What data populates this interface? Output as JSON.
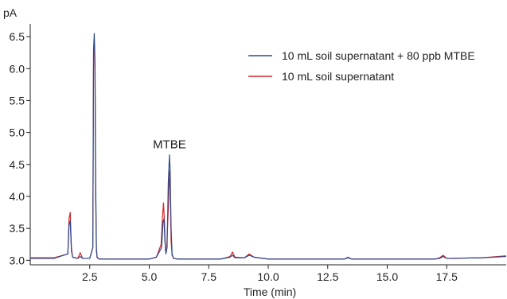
{
  "chart_data": {
    "type": "line",
    "title": "",
    "xlabel": "Time (min)",
    "ylabel": "pA",
    "xlim": [
      0,
      20
    ],
    "ylim": [
      2.93,
      6.7
    ],
    "x_ticks": [
      2.5,
      5.0,
      7.5,
      10.0,
      12.5,
      15.0,
      17.5
    ],
    "x_tick_labels": [
      "2.5",
      "5.0",
      "7.5",
      "10.0",
      "12.5",
      "15.0",
      "17.5"
    ],
    "y_ticks": [
      3.0,
      3.5,
      4.0,
      4.5,
      5.0,
      5.5,
      6.0,
      6.5
    ],
    "y_tick_labels": [
      "3.0",
      "3.5",
      "4.0",
      "4.5",
      "5.0",
      "5.5",
      "6.0",
      "6.5"
    ],
    "grid": false,
    "legend_position": "top-right",
    "annotations": [
      {
        "text": "MTBE",
        "x": 5.85,
        "y": 4.75
      }
    ],
    "series": [
      {
        "name": "10 mL soil supernatant + 80 ppb MTBE",
        "color": "#2b4a8f",
        "x": [
          0.0,
          1.0,
          1.58,
          1.63,
          1.68,
          1.73,
          1.78,
          2.0,
          2.1,
          2.2,
          2.5,
          2.63,
          2.66,
          2.69,
          2.72,
          2.75,
          2.78,
          2.81,
          2.9,
          3.5,
          4.0,
          4.5,
          5.0,
          5.3,
          5.52,
          5.58,
          5.62,
          5.66,
          5.7,
          5.75,
          5.8,
          5.85,
          5.88,
          5.92,
          5.96,
          6.02,
          6.2,
          7.0,
          8.0,
          8.4,
          8.5,
          8.6,
          9.0,
          9.2,
          9.4,
          10.0,
          11.0,
          12.0,
          13.2,
          13.35,
          13.5,
          15.0,
          17.0,
          17.2,
          17.35,
          17.5,
          19.0,
          20.0
        ],
        "y": [
          3.03,
          3.03,
          3.1,
          3.55,
          3.62,
          3.15,
          3.05,
          3.03,
          3.06,
          3.03,
          3.03,
          3.2,
          6.3,
          6.55,
          6.1,
          4.2,
          3.2,
          3.05,
          3.02,
          3.02,
          3.02,
          3.02,
          3.02,
          3.05,
          3.2,
          3.6,
          3.65,
          3.3,
          3.1,
          3.2,
          4.2,
          4.65,
          4.4,
          3.5,
          3.1,
          3.03,
          3.02,
          3.02,
          3.02,
          3.05,
          3.08,
          3.04,
          3.04,
          3.08,
          3.05,
          3.02,
          3.02,
          3.02,
          3.02,
          3.04,
          3.02,
          3.02,
          3.02,
          3.03,
          3.06,
          3.03,
          3.04,
          3.06
        ]
      },
      {
        "name": "10 mL soil supernatant",
        "color": "#d42428",
        "x": [
          0.0,
          1.0,
          1.58,
          1.63,
          1.68,
          1.73,
          1.78,
          2.0,
          2.1,
          2.2,
          2.5,
          2.63,
          2.66,
          2.69,
          2.72,
          2.75,
          2.78,
          2.81,
          2.9,
          3.5,
          4.0,
          4.5,
          5.0,
          5.3,
          5.5,
          5.56,
          5.6,
          5.64,
          5.68,
          5.73,
          5.8,
          5.85,
          5.88,
          5.92,
          5.96,
          6.02,
          6.2,
          7.0,
          8.0,
          8.4,
          8.5,
          8.6,
          9.0,
          9.2,
          9.4,
          10.0,
          11.0,
          12.0,
          13.2,
          13.35,
          13.5,
          15.0,
          17.0,
          17.2,
          17.35,
          17.5,
          19.0,
          20.0
        ],
        "y": [
          3.04,
          3.04,
          3.1,
          3.65,
          3.75,
          3.2,
          3.05,
          3.03,
          3.12,
          3.03,
          3.03,
          3.2,
          6.2,
          6.45,
          6.0,
          4.0,
          3.15,
          3.04,
          3.02,
          3.02,
          3.02,
          3.02,
          3.02,
          3.05,
          3.25,
          3.7,
          3.9,
          3.6,
          3.15,
          3.15,
          3.8,
          4.4,
          4.1,
          3.3,
          3.08,
          3.03,
          3.02,
          3.02,
          3.02,
          3.06,
          3.13,
          3.05,
          3.04,
          3.1,
          3.05,
          3.02,
          3.02,
          3.02,
          3.02,
          3.05,
          3.02,
          3.02,
          3.02,
          3.04,
          3.08,
          3.03,
          3.04,
          3.07
        ]
      }
    ]
  }
}
